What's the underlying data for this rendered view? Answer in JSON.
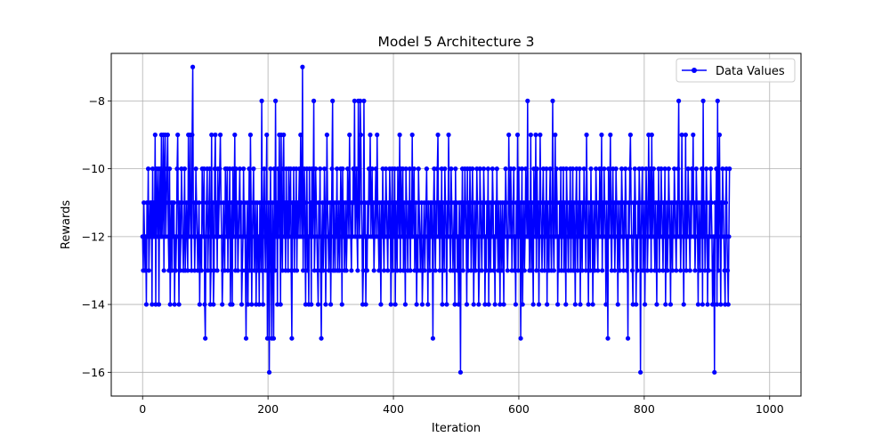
{
  "chart_data": {
    "type": "line",
    "title": "Model 5 Architecture 3",
    "xlabel": "Iteration",
    "ylabel": "Rewards",
    "xlim": [
      -50,
      1050
    ],
    "ylim": [
      -16.7,
      -6.6
    ],
    "xticks": [
      0,
      200,
      400,
      600,
      800,
      1000
    ],
    "yticks": [
      -16,
      -14,
      -12,
      -10,
      -8
    ],
    "ytick_labels": [
      "−16",
      "−14",
      "−12",
      "−10",
      "−8"
    ],
    "grid": true,
    "legend_position": "top-right",
    "series": [
      {
        "name": "Data Values",
        "color": "#0000ff",
        "marker": "circle",
        "x_start": 0,
        "x_step": 1,
        "y": [
          -12,
          -13,
          -11,
          -12,
          -13,
          -12,
          -14,
          -11,
          -12,
          -10,
          -13,
          -12,
          -11,
          -12,
          -11,
          -14,
          -10,
          -12,
          -11,
          -12,
          -9,
          -14,
          -10,
          -11,
          -12,
          -10,
          -14,
          -11,
          -10,
          -12,
          -9,
          -12,
          -11,
          -9,
          -13,
          -10,
          -9,
          -12,
          -11,
          -10,
          -9,
          -12,
          -13,
          -10,
          -14,
          -12,
          -11,
          -13,
          -11,
          -12,
          -11,
          -14,
          -12,
          -13,
          -12,
          -10,
          -9,
          -12,
          -14,
          -11,
          -13,
          -12,
          -10,
          -11,
          -12,
          -13,
          -12,
          -10,
          -13,
          -12,
          -11,
          -12,
          -13,
          -9,
          -12,
          -11,
          -9,
          -12,
          -13,
          -9,
          -7,
          -12,
          -11,
          -13,
          -12,
          -10,
          -11,
          -12,
          -13,
          -12,
          -11,
          -14,
          -12,
          -12,
          -13,
          -10,
          -11,
          -12,
          -10,
          -14,
          -15,
          -12,
          -11,
          -10,
          -13,
          -12,
          -11,
          -10,
          -14,
          -13,
          -9,
          -12,
          -11,
          -14,
          -13,
          -10,
          -9,
          -12,
          -11,
          -13,
          -10,
          -12,
          -11,
          -10,
          -9,
          -11,
          -12,
          -14,
          -13,
          -11,
          -12,
          -13,
          -10,
          -11,
          -12,
          -10,
          -13,
          -11,
          -12,
          -10,
          -14,
          -12,
          -11,
          -14,
          -10,
          -12,
          -11,
          -9,
          -13,
          -10,
          -12,
          -11,
          -13,
          -12,
          -11,
          -10,
          -12,
          -11,
          -14,
          -13,
          -12,
          -10,
          -12,
          -11,
          -13,
          -15,
          -12,
          -11,
          -14,
          -12,
          -10,
          -13,
          -9,
          -11,
          -14,
          -12,
          -11,
          -10,
          -13,
          -12,
          -11,
          -14,
          -12,
          -11,
          -13,
          -12,
          -14,
          -11,
          -12,
          -13,
          -8,
          -12,
          -14,
          -11,
          -10,
          -12,
          -13,
          -11,
          -9,
          -15,
          -12,
          -11,
          -16,
          -12,
          -10,
          -13,
          -15,
          -11,
          -12,
          -15,
          -10,
          -13,
          -8,
          -12,
          -11,
          -14,
          -10,
          -12,
          -9,
          -11,
          -14,
          -9,
          -12,
          -13,
          -10,
          -9,
          -12,
          -11,
          -13,
          -10,
          -12,
          -11,
          -13,
          -10,
          -12,
          -11,
          -10,
          -13,
          -15,
          -11,
          -12,
          -10,
          -13,
          -11,
          -12,
          -10,
          -13,
          -11,
          -12,
          -11,
          -10,
          -12,
          -9,
          -11,
          -12,
          -7,
          -13,
          -11,
          -10,
          -12,
          -14,
          -11,
          -10,
          -13,
          -12,
          -14,
          -10,
          -12,
          -11,
          -14,
          -10,
          -12,
          -11,
          -8,
          -13,
          -12,
          -10,
          -11,
          -12,
          -13,
          -14,
          -11,
          -12,
          -10,
          -13,
          -15,
          -12,
          -11,
          -13,
          -12,
          -10,
          -11,
          -14,
          -12,
          -9,
          -11,
          -12,
          -13,
          -12,
          -11,
          -14,
          -12,
          -10,
          -8,
          -13,
          -11,
          -12,
          -13,
          -11,
          -12,
          -10,
          -13,
          -12,
          -11,
          -13,
          -12,
          -10,
          -11,
          -14,
          -10,
          -12,
          -11,
          -13,
          -12,
          -11,
          -13,
          -12,
          -10,
          -11,
          -12,
          -9,
          -11,
          -12,
          -13,
          -11,
          -12,
          -10,
          -11,
          -8,
          -12,
          -11,
          -10,
          -12,
          -13,
          -8,
          -11,
          -12,
          -8,
          -9,
          -11,
          -12,
          -14,
          -13,
          -8,
          -12,
          -11,
          -14,
          -12,
          -13,
          -11,
          -12,
          -10,
          -11,
          -9,
          -12,
          -11,
          -10,
          -12,
          -11,
          -13,
          -12,
          -11,
          -10,
          -12,
          -9,
          -11,
          -12,
          -13,
          -11,
          -12,
          -14,
          -11,
          -12,
          -10,
          -12,
          -13,
          -11,
          -12,
          -10,
          -11,
          -12,
          -13,
          -11,
          -12,
          -10,
          -11,
          -14,
          -12,
          -10,
          -13,
          -11,
          -12,
          -10,
          -14,
          -11,
          -12,
          -13,
          -10,
          -11,
          -12,
          -9,
          -13,
          -10,
          -11,
          -12,
          -10,
          -13,
          -11,
          -12,
          -14,
          -10,
          -11,
          -12,
          -13,
          -11,
          -12,
          -10,
          -13,
          -11,
          -12,
          -9,
          -12,
          -11,
          -10,
          -13,
          -12,
          -11,
          -14,
          -12,
          -13,
          -10,
          -11,
          -12,
          -13,
          -12,
          -11,
          -14,
          -13,
          -12,
          -11,
          -13,
          -12,
          -11,
          -10,
          -12,
          -14,
          -11,
          -12,
          -13,
          -11,
          -12,
          -11,
          -12,
          -15,
          -11,
          -10,
          -12,
          -13,
          -11,
          -12,
          -10,
          -9,
          -12,
          -11,
          -13,
          -11,
          -12,
          -10,
          -14,
          -11,
          -12,
          -13,
          -10,
          -11,
          -12,
          -14,
          -11,
          -12,
          -9,
          -11,
          -12,
          -13,
          -10,
          -11,
          -12,
          -13,
          -12,
          -11,
          -14,
          -10,
          -12,
          -11,
          -13,
          -12,
          -14,
          -11,
          -12,
          -16,
          -11,
          -12,
          -10,
          -13,
          -11,
          -12,
          -10,
          -11,
          -12,
          -14,
          -10,
          -13,
          -11,
          -12,
          -10,
          -11,
          -13,
          -12,
          -10,
          -11,
          -14,
          -12,
          -11,
          -13,
          -12,
          -10,
          -11,
          -12,
          -14,
          -13,
          -10,
          -11,
          -12,
          -13,
          -11,
          -12,
          -10,
          -11,
          -14,
          -12,
          -13,
          -11,
          -12,
          -10,
          -14,
          -11,
          -12,
          -13,
          -11,
          -12,
          -10,
          -11,
          -13,
          -12,
          -14,
          -11,
          -12,
          -10,
          -12,
          -13,
          -11,
          -12,
          -14,
          -11,
          -12,
          -13,
          -11,
          -12,
          -14,
          -11,
          -12,
          -10,
          -11,
          -12,
          -13,
          -12,
          -9,
          -11,
          -12,
          -10,
          -11,
          -13,
          -12,
          -11,
          -10,
          -13,
          -12,
          -14,
          -11,
          -12,
          -9,
          -13,
          -10,
          -12,
          -11,
          -15,
          -12,
          -10,
          -14,
          -12,
          -11,
          -13,
          -12,
          -10,
          -11,
          -12,
          -8,
          -12,
          -11,
          -13,
          -12,
          -9,
          -13,
          -11,
          -12,
          -14,
          -10,
          -11,
          -12,
          -9,
          -13,
          -10,
          -12,
          -11,
          -14,
          -12,
          -9,
          -11,
          -12,
          -13,
          -11,
          -10,
          -12,
          -13,
          -11,
          -12,
          -10,
          -14,
          -11,
          -12,
          -13,
          -11,
          -10,
          -12,
          -13,
          -11,
          -8,
          -12,
          -13,
          -11,
          -9,
          -12,
          -10,
          -11,
          -14,
          -12,
          -13,
          -11,
          -12,
          -10,
          -13,
          -11,
          -12,
          -10,
          -13,
          -11,
          -12,
          -14,
          -10,
          -11,
          -12,
          -13,
          -11,
          -12,
          -10,
          -13,
          -11,
          -12,
          -10,
          -13,
          -11,
          -12,
          -14,
          -11,
          -10,
          -12,
          -13,
          -11,
          -12,
          -10,
          -14,
          -11,
          -12,
          -13,
          -11,
          -12,
          -10,
          -11,
          -12,
          -13,
          -9,
          -11,
          -12,
          -14,
          -11,
          -12,
          -13,
          -10,
          -12,
          -11,
          -14,
          -12,
          -11,
          -13,
          -12,
          -10,
          -11,
          -12,
          -13,
          -11,
          -12,
          -10,
          -11,
          -12,
          -9,
          -13,
          -11,
          -12,
          -10,
          -11,
          -12,
          -14,
          -11,
          -12,
          -15,
          -10,
          -12,
          -11,
          -9,
          -12,
          -13,
          -11,
          -10,
          -12,
          -11,
          -13,
          -12,
          -10,
          -11,
          -12,
          -14,
          -11,
          -12,
          -13,
          -11,
          -12,
          -10,
          -11,
          -12,
          -13,
          -11,
          -12,
          -10,
          -11,
          -13,
          -12,
          -15,
          -11,
          -12,
          -10,
          -9,
          -11,
          -12,
          -13,
          -14,
          -11,
          -12,
          -10,
          -11,
          -14,
          -12,
          -13,
          -11,
          -12,
          -10,
          -11,
          -16,
          -12,
          -11,
          -10,
          -13,
          -12,
          -11,
          -14,
          -12,
          -10,
          -11,
          -13,
          -12,
          -9,
          -11,
          -12,
          -10,
          -13,
          -9,
          -12,
          -11,
          -10,
          -12,
          -13,
          -11,
          -12,
          -14,
          -11,
          -12,
          -10,
          -13,
          -11,
          -12,
          -10,
          -11,
          -12,
          -13,
          -11,
          -12,
          -10,
          -14,
          -12,
          -11,
          -13,
          -12,
          -10,
          -11,
          -12,
          -14,
          -11,
          -12,
          -13,
          -11,
          -12,
          -10,
          -11,
          -12,
          -13,
          -11,
          -12,
          -10,
          -8,
          -12,
          -11,
          -13,
          -12,
          -9,
          -11,
          -12,
          -14,
          -11,
          -12,
          -9,
          -13,
          -11,
          -12,
          -10,
          -11,
          -12,
          -13,
          -11,
          -12,
          -10,
          -11,
          -9,
          -12,
          -11,
          -13,
          -12,
          -10,
          -11,
          -12,
          -14,
          -11,
          -12,
          -13,
          -11,
          -12,
          -10,
          -14,
          -8,
          -12,
          -11,
          -13,
          -12,
          -10,
          -11,
          -14,
          -12,
          -13,
          -11,
          -12,
          -10,
          -11,
          -12,
          -14,
          -13,
          -12,
          -16,
          -11,
          -12,
          -10,
          -14,
          -8,
          -13,
          -11,
          -9,
          -12,
          -14,
          -11,
          -12,
          -10,
          -11,
          -12,
          -13,
          -14,
          -11,
          -10,
          -12,
          -13,
          -14,
          -12,
          -10
        ]
      }
    ]
  }
}
